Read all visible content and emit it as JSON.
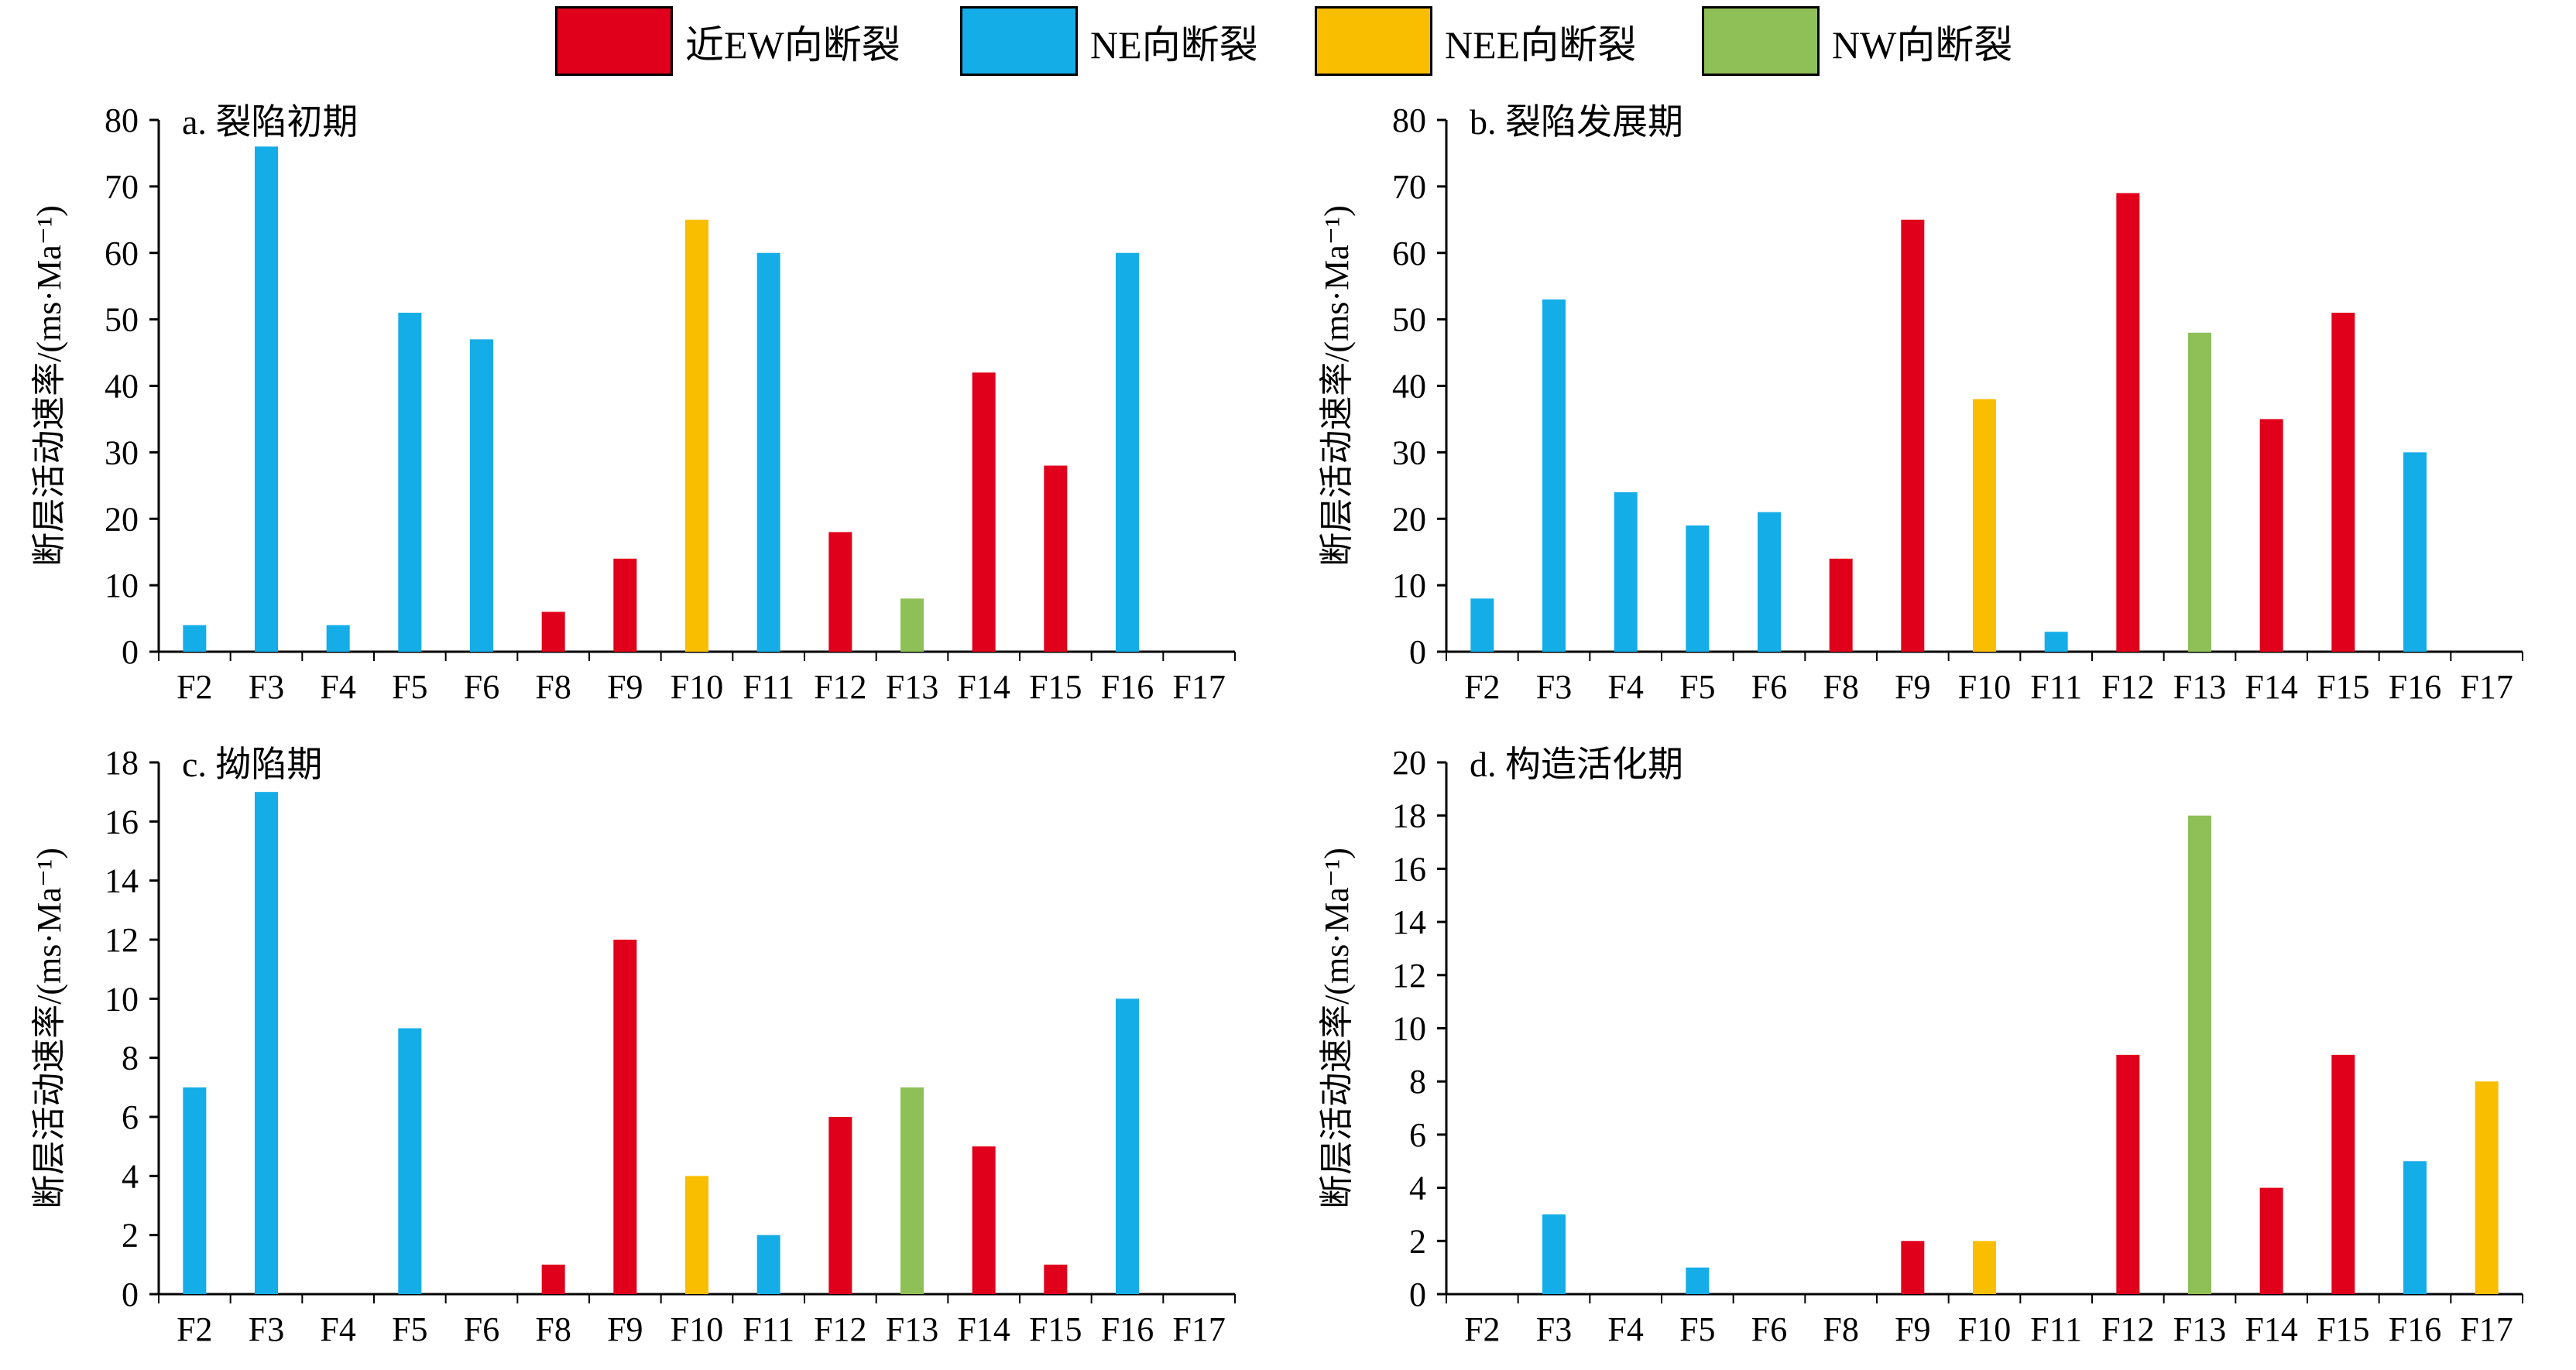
{
  "legend": {
    "items": [
      {
        "label": "近EW向断裂",
        "color": "#E0001B"
      },
      {
        "label": "NE向断裂",
        "color": "#14ADE8"
      },
      {
        "label": "NEE向断裂",
        "color": "#FABE00"
      },
      {
        "label": "NW向断裂",
        "color": "#8FC058"
      }
    ]
  },
  "chart_data": [
    {
      "type": "bar",
      "title": "a. 裂陷初期",
      "ylabel": "断层活动速率/(ms·Ma⁻¹)",
      "ylim": [
        0,
        80
      ],
      "yticks": [
        "0",
        "10",
        "20",
        "30",
        "40",
        "50",
        "60",
        "70",
        "80"
      ],
      "categories": [
        "F2",
        "F3",
        "F4",
        "F5",
        "F6",
        "F8",
        "F9",
        "F10",
        "F11",
        "F12",
        "F13",
        "F14",
        "F15",
        "F16",
        "F17"
      ],
      "values": [
        4,
        76,
        4,
        51,
        47,
        6,
        14,
        65,
        60,
        18,
        8,
        42,
        28,
        60,
        0
      ],
      "fault_type": [
        "NE",
        "NE",
        "NE",
        "NE",
        "NE",
        "EW",
        "EW",
        "NEE",
        "NE",
        "EW",
        "NW",
        "EW",
        "EW",
        "NE",
        ""
      ]
    },
    {
      "type": "bar",
      "title": "b. 裂陷发展期",
      "ylabel": "断层活动速率/(ms·Ma⁻¹)",
      "ylim": [
        0,
        80
      ],
      "yticks": [
        "0",
        "10",
        "20",
        "30",
        "40",
        "50",
        "60",
        "70",
        "80"
      ],
      "categories": [
        "F2",
        "F3",
        "F4",
        "F5",
        "F6",
        "F8",
        "F9",
        "F10",
        "F11",
        "F12",
        "F13",
        "F14",
        "F15",
        "F16",
        "F17"
      ],
      "values": [
        8,
        53,
        24,
        19,
        21,
        14,
        65,
        38,
        3,
        69,
        48,
        35,
        51,
        30,
        0
      ],
      "fault_type": [
        "NE",
        "NE",
        "NE",
        "NE",
        "NE",
        "EW",
        "EW",
        "NEE",
        "NE",
        "EW",
        "NW",
        "EW",
        "EW",
        "NE",
        ""
      ]
    },
    {
      "type": "bar",
      "title": "c. 拗陷期",
      "ylabel": "断层活动速率/(ms·Ma⁻¹)",
      "ylim": [
        0,
        18
      ],
      "yticks": [
        "0",
        "2",
        "4",
        "6",
        "8",
        "10",
        "12",
        "14",
        "16",
        "18"
      ],
      "categories": [
        "F2",
        "F3",
        "F4",
        "F5",
        "F6",
        "F8",
        "F9",
        "F10",
        "F11",
        "F12",
        "F13",
        "F14",
        "F15",
        "F16",
        "F17"
      ],
      "values": [
        7,
        17,
        0,
        9,
        0,
        1,
        12,
        4,
        2,
        6,
        7,
        5,
        1,
        10,
        0
      ],
      "fault_type": [
        "NE",
        "NE",
        "",
        "NE",
        "",
        "EW",
        "EW",
        "NEE",
        "NE",
        "EW",
        "NW",
        "EW",
        "EW",
        "NE",
        ""
      ]
    },
    {
      "type": "bar",
      "title": "d. 构造活化期",
      "ylabel": "断层活动速率/(ms·Ma⁻¹)",
      "ylim": [
        0,
        20
      ],
      "yticks": [
        "0",
        "2",
        "4",
        "6",
        "8",
        "10",
        "12",
        "14",
        "16",
        "18",
        "20"
      ],
      "categories": [
        "F2",
        "F3",
        "F4",
        "F5",
        "F6",
        "F8",
        "F9",
        "F10",
        "F11",
        "F12",
        "F13",
        "F14",
        "F15",
        "F16",
        "F17"
      ],
      "values": [
        0,
        3,
        0,
        1,
        0,
        0,
        2,
        2,
        0,
        9,
        18,
        4,
        9,
        5,
        8
      ],
      "fault_type": [
        "",
        "NE",
        "",
        "NE",
        "",
        "",
        "EW",
        "NEE",
        "",
        "EW",
        "NW",
        "EW",
        "EW",
        "NE",
        "NEE"
      ]
    }
  ],
  "colors": {
    "EW": "#E0001B",
    "NE": "#14ADE8",
    "NEE": "#FABE00",
    "NW": "#8FC058"
  }
}
